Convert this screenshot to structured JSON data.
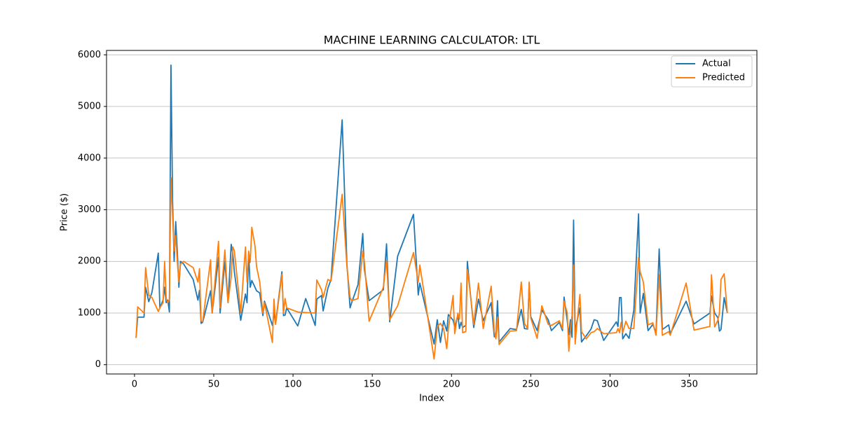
{
  "chart_data": {
    "type": "line",
    "title": "MACHINE LEARNING CALCULATOR: LTL",
    "xlabel": "Index",
    "ylabel": "Price ($)",
    "x": [
      1,
      2,
      6,
      7,
      9,
      11,
      15,
      16,
      18,
      19,
      20,
      21,
      22,
      23,
      24,
      25,
      26,
      27,
      28,
      29,
      31,
      37,
      40,
      41,
      42,
      43,
      48,
      49,
      53,
      54,
      57,
      59,
      61,
      62,
      63,
      67,
      70,
      71,
      72,
      73,
      74,
      76,
      77,
      79,
      81,
      82,
      87,
      88,
      89,
      93,
      94,
      95,
      96,
      103,
      108,
      114,
      115,
      118,
      119,
      122,
      124,
      131,
      134,
      136,
      137,
      141,
      144,
      145,
      148,
      157,
      159,
      161,
      166,
      176,
      179,
      180,
      189,
      191,
      193,
      195,
      197,
      198,
      201,
      202,
      204,
      205,
      206,
      207,
      209,
      210,
      211,
      214,
      217,
      220,
      225,
      227,
      228,
      229,
      230,
      237,
      241,
      244,
      246,
      248,
      249,
      250,
      254,
      257,
      261,
      263,
      268,
      270,
      271,
      273,
      274,
      275,
      276,
      277,
      278,
      279,
      281,
      282,
      285,
      288,
      290,
      292,
      296,
      304,
      305,
      306,
      307,
      308,
      310,
      312,
      315,
      318,
      319,
      321,
      324,
      327,
      329,
      331,
      333,
      337,
      338,
      348,
      353,
      363,
      364,
      366,
      368,
      369,
      370,
      372,
      374
    ],
    "series": [
      {
        "name": "Actual",
        "color": "#1f77b4",
        "values": [
          520,
          920,
          920,
          1500,
          1220,
          1400,
          2160,
          1100,
          1250,
          1500,
          1200,
          1250,
          1020,
          5800,
          3200,
          2000,
          2770,
          2200,
          1500,
          2000,
          1950,
          1650,
          1250,
          1440,
          800,
          820,
          1430,
          1000,
          2080,
          1000,
          2000,
          1200,
          2330,
          2150,
          1800,
          860,
          1370,
          1200,
          2150,
          1500,
          1630,
          1500,
          1430,
          1390,
          950,
          1230,
          760,
          1000,
          800,
          1800,
          950,
          960,
          1100,
          750,
          1280,
          760,
          1270,
          1340,
          1040,
          1480,
          1650,
          4740,
          1950,
          1100,
          1200,
          1550,
          2540,
          1850,
          1240,
          1450,
          2340,
          830,
          2100,
          2910,
          1350,
          1580,
          400,
          870,
          430,
          850,
          650,
          970,
          860,
          730,
          960,
          700,
          820,
          720,
          760,
          2000,
          1650,
          720,
          1270,
          850,
          1200,
          540,
          540,
          1240,
          440,
          700,
          680,
          1070,
          700,
          690,
          1580,
          930,
          660,
          1060,
          870,
          660,
          820,
          660,
          1310,
          850,
          580,
          870,
          530,
          2800,
          580,
          820,
          1100,
          440,
          560,
          690,
          870,
          850,
          470,
          830,
          740,
          1300,
          1300,
          500,
          600,
          510,
          1050,
          2920,
          1000,
          1380,
          660,
          780,
          620,
          2240,
          680,
          770,
          600,
          1230,
          790,
          1000,
          1330,
          1000,
          910,
          650,
          680,
          1300,
          1000
        ]
      },
      {
        "name": "Predicted",
        "color": "#ff7f0e",
        "values": [
          520,
          1120,
          1000,
          1880,
          1340,
          1300,
          1030,
          1100,
          1200,
          2000,
          1280,
          1200,
          1250,
          3620,
          2900,
          2200,
          2500,
          2000,
          1600,
          1950,
          2000,
          1880,
          1600,
          1860,
          850,
          830,
          2030,
          1000,
          2390,
          1100,
          2220,
          1200,
          1700,
          2280,
          2200,
          1000,
          2280,
          1600,
          2200,
          1980,
          2660,
          2300,
          1900,
          1600,
          1000,
          1200,
          430,
          1270,
          780,
          1750,
          1000,
          1280,
          1100,
          1020,
          1010,
          1000,
          1640,
          1450,
          1300,
          1650,
          1620,
          3300,
          1900,
          1300,
          1240,
          1280,
          2200,
          2000,
          840,
          1500,
          2020,
          870,
          1140,
          2170,
          1600,
          1930,
          110,
          740,
          800,
          700,
          310,
          700,
          1340,
          600,
          1000,
          880,
          1580,
          620,
          640,
          1840,
          1600,
          780,
          1580,
          700,
          1520,
          640,
          500,
          920,
          390,
          650,
          660,
          1600,
          800,
          700,
          1600,
          900,
          510,
          1140,
          780,
          760,
          850,
          700,
          1230,
          1000,
          260,
          650,
          950,
          1930,
          400,
          760,
          1360,
          640,
          500,
          620,
          640,
          700,
          600,
          620,
          700,
          620,
          820,
          620,
          840,
          700,
          700,
          2080,
          1800,
          1600,
          770,
          810,
          570,
          1740,
          570,
          640,
          570,
          1580,
          670,
          740,
          1740,
          730,
          860,
          1000,
          1650,
          1760,
          1000
        ]
      }
    ],
    "xlim": [
      -17.65,
      392.65
    ],
    "xticks": [
      0,
      50,
      100,
      150,
      200,
      250,
      300,
      350
    ],
    "ylim": [
      -180,
      6085
    ],
    "yticks": [
      0,
      1000,
      2000,
      3000,
      4000,
      5000,
      6000
    ],
    "grid": "y",
    "legend": "upper right"
  }
}
